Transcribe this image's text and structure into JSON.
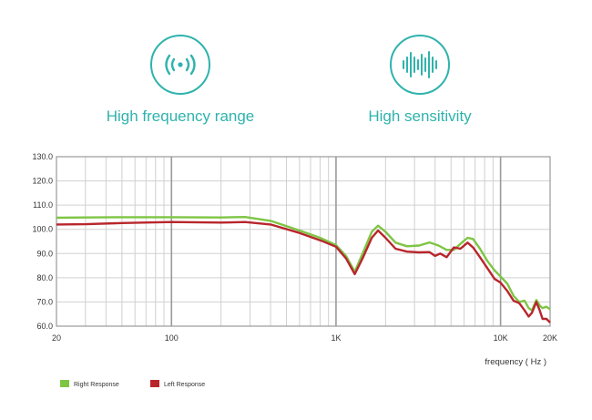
{
  "features": [
    {
      "label": "High frequency range",
      "icon": "wireless-signal-icon"
    },
    {
      "label": "High sensitivity",
      "icon": "sound-wave-icon"
    }
  ],
  "colors": {
    "accent": "#2fb3ad",
    "right": "#7ec544",
    "left": "#b8262c",
    "grid": "#d0d0d0",
    "major_grid": "#9a9a9a"
  },
  "chart_data": {
    "type": "line",
    "xscale": "log",
    "xlim": [
      20,
      20000
    ],
    "ylim": [
      60,
      130
    ],
    "xlabel": "frequency ( Hz )",
    "ylabel": "",
    "x_tick_labels": [
      {
        "value": 20,
        "label": "20"
      },
      {
        "value": 100,
        "label": "100"
      },
      {
        "value": 1000,
        "label": "1K"
      },
      {
        "value": 10000,
        "label": "10K"
      },
      {
        "value": 20000,
        "label": "20K"
      }
    ],
    "y_tick_labels": [
      "60.0",
      "70.0",
      "80.0",
      "90.0",
      "100.0",
      "110.0",
      "120.0",
      "130.0"
    ],
    "grid": true,
    "legend_position": "bottom-left",
    "series": [
      {
        "name": "Right Response",
        "color": "#7ec544",
        "points": [
          [
            20,
            104.8
          ],
          [
            30,
            104.9
          ],
          [
            50,
            105.0
          ],
          [
            100,
            105.0
          ],
          [
            200,
            104.9
          ],
          [
            280,
            105.1
          ],
          [
            400,
            103.5
          ],
          [
            600,
            99.5
          ],
          [
            800,
            96.5
          ],
          [
            1000,
            93.5
          ],
          [
            1150,
            89.0
          ],
          [
            1300,
            82.5
          ],
          [
            1450,
            90.0
          ],
          [
            1650,
            99.0
          ],
          [
            1800,
            101.5
          ],
          [
            2000,
            99.0
          ],
          [
            2300,
            94.5
          ],
          [
            2700,
            93.0
          ],
          [
            3200,
            93.3
          ],
          [
            3700,
            94.6
          ],
          [
            4200,
            93.3
          ],
          [
            4700,
            91.5
          ],
          [
            5200,
            91.5
          ],
          [
            5700,
            94.0
          ],
          [
            6300,
            96.5
          ],
          [
            6800,
            96.0
          ],
          [
            7500,
            92.0
          ],
          [
            8300,
            87.0
          ],
          [
            9200,
            83.0
          ],
          [
            10000,
            80.5
          ],
          [
            11000,
            77.5
          ],
          [
            12000,
            72.5
          ],
          [
            13000,
            70.0
          ],
          [
            14000,
            70.5
          ],
          [
            14800,
            67.5
          ],
          [
            15500,
            66.5
          ],
          [
            16500,
            70.8
          ],
          [
            17300,
            68.5
          ],
          [
            18000,
            67.5
          ],
          [
            19000,
            68.0
          ],
          [
            20000,
            67.0
          ]
        ]
      },
      {
        "name": "Left Response",
        "color": "#b8262c",
        "points": [
          [
            20,
            102.0
          ],
          [
            30,
            102.1
          ],
          [
            50,
            102.6
          ],
          [
            100,
            103.0
          ],
          [
            200,
            102.8
          ],
          [
            280,
            103.0
          ],
          [
            400,
            102.0
          ],
          [
            600,
            98.5
          ],
          [
            800,
            95.5
          ],
          [
            1000,
            92.8
          ],
          [
            1150,
            88.0
          ],
          [
            1300,
            81.5
          ],
          [
            1450,
            88.0
          ],
          [
            1650,
            96.5
          ],
          [
            1800,
            99.5
          ],
          [
            2000,
            96.5
          ],
          [
            2300,
            92.0
          ],
          [
            2700,
            90.8
          ],
          [
            3200,
            90.5
          ],
          [
            3700,
            90.6
          ],
          [
            4000,
            89.0
          ],
          [
            4300,
            90.0
          ],
          [
            4700,
            88.5
          ],
          [
            5200,
            92.5
          ],
          [
            5700,
            92.0
          ],
          [
            6300,
            94.5
          ],
          [
            6800,
            92.5
          ],
          [
            7500,
            88.5
          ],
          [
            8300,
            84.0
          ],
          [
            9200,
            79.5
          ],
          [
            10000,
            78.0
          ],
          [
            11000,
            74.5
          ],
          [
            12000,
            70.5
          ],
          [
            13000,
            69.5
          ],
          [
            14000,
            66.5
          ],
          [
            14800,
            64.0
          ],
          [
            15500,
            65.5
          ],
          [
            16500,
            70.0
          ],
          [
            17300,
            66.5
          ],
          [
            18000,
            63.0
          ],
          [
            19000,
            63.0
          ],
          [
            20000,
            61.5
          ]
        ]
      }
    ]
  }
}
